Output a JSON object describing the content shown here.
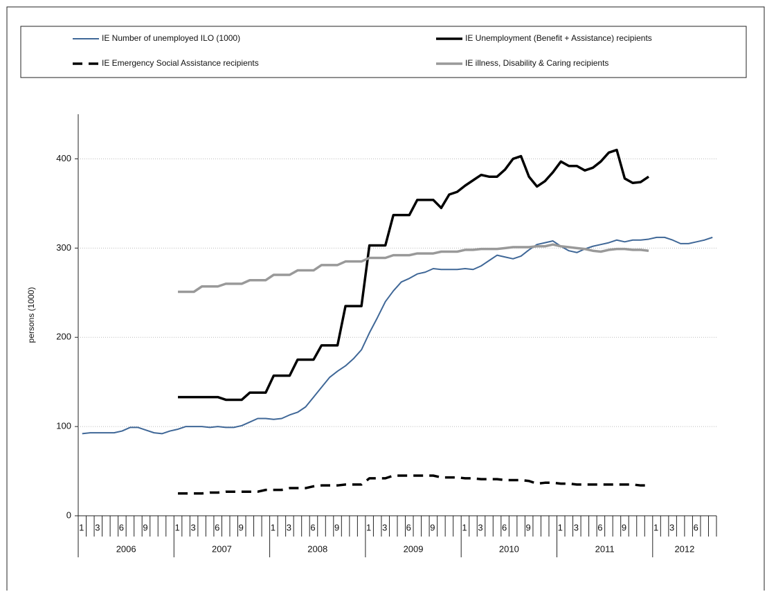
{
  "chart_data": {
    "type": "line",
    "y_label": "persons (1000)",
    "categories": [
      "1",
      null,
      "3",
      null,
      null,
      "6",
      null,
      null,
      "9",
      null,
      null,
      null,
      "1",
      null,
      "3",
      null,
      null,
      "6",
      null,
      null,
      "9",
      null,
      null,
      null,
      "1",
      null,
      "3",
      null,
      null,
      "6",
      null,
      null,
      "9",
      null,
      null,
      null,
      "1",
      null,
      "3",
      null,
      null,
      "6",
      null,
      null,
      "9",
      null,
      null,
      null,
      "1",
      null,
      "3",
      null,
      null,
      "6",
      null,
      null,
      "9",
      null,
      null,
      null,
      "1",
      null,
      "3",
      null,
      null,
      "6",
      null,
      null,
      "9",
      null,
      null,
      null,
      "1",
      null,
      "3",
      null,
      null,
      "6",
      null,
      null
    ],
    "x_groups": [
      "2006",
      "2007",
      "2008",
      "2009",
      "2010",
      "2011",
      "2012"
    ],
    "ylim": [
      0,
      450
    ],
    "yticks": [
      0,
      100,
      200,
      300,
      400
    ],
    "grid": true,
    "legend": "top",
    "series": [
      {
        "name": "IE Number of unemployed ILO (1000)",
        "color": "#3f6797",
        "line_width": 2,
        "line_style": "solid",
        "values": [
          92,
          93,
          93,
          93,
          93,
          95,
          99,
          99,
          96,
          93,
          92,
          95,
          97,
          100,
          100,
          100,
          99,
          100,
          99,
          99,
          101,
          105,
          109,
          109,
          108,
          109,
          113,
          116,
          122,
          133,
          144,
          155,
          162,
          168,
          176,
          186,
          205,
          222,
          240,
          252,
          262,
          266,
          271,
          273,
          277,
          276,
          276,
          276,
          277,
          276,
          280,
          286,
          292,
          290,
          288,
          291,
          298,
          304,
          306,
          308,
          302,
          297,
          295,
          299,
          302,
          304,
          306,
          309,
          307,
          309,
          309,
          310,
          312,
          312,
          309,
          305,
          305,
          307,
          309,
          312
        ]
      },
      {
        "name": "IE Unemployment (Benefit + Assistance) recipients",
        "color": "#000000",
        "line_width": 3.5,
        "line_style": "solid",
        "values": [
          null,
          null,
          null,
          null,
          null,
          null,
          null,
          null,
          null,
          null,
          null,
          null,
          133,
          133,
          133,
          133,
          133,
          133,
          130,
          130,
          130,
          138,
          138,
          138,
          157,
          157,
          157,
          175,
          175,
          175,
          191,
          191,
          191,
          235,
          235,
          235,
          303,
          303,
          303,
          337,
          337,
          337,
          354,
          354,
          354,
          345,
          360,
          363,
          370,
          376,
          382,
          380,
          380,
          388,
          400,
          403,
          380,
          369,
          375,
          385,
          397,
          392,
          392,
          387,
          390,
          397,
          407,
          410,
          378,
          373,
          374,
          380,
          null,
          null,
          null,
          null,
          null,
          null,
          null,
          null
        ]
      },
      {
        "name": "IE Emergency Social Assistance recipients",
        "color": "#000000",
        "line_width": 3.5,
        "line_style": "dashed",
        "values": [
          null,
          null,
          null,
          null,
          null,
          null,
          null,
          null,
          null,
          null,
          null,
          null,
          25,
          25,
          25,
          25,
          26,
          26,
          27,
          27,
          27,
          27,
          27,
          29,
          29,
          29,
          31,
          31,
          31,
          33,
          34,
          34,
          34,
          35,
          35,
          35,
          42,
          42,
          42,
          45,
          45,
          45,
          45,
          45,
          45,
          43,
          43,
          43,
          42,
          42,
          41,
          41,
          41,
          40,
          40,
          40,
          39,
          36,
          37,
          37,
          36,
          36,
          35,
          35,
          35,
          35,
          35,
          35,
          35,
          35,
          34,
          34,
          null,
          null,
          null,
          null,
          null,
          null,
          null,
          null
        ]
      },
      {
        "name": "IE illness, Disability & Caring recipients",
        "color": "#999999",
        "line_width": 3.5,
        "line_style": "solid",
        "values": [
          null,
          null,
          null,
          null,
          null,
          null,
          null,
          null,
          null,
          null,
          null,
          null,
          251,
          251,
          251,
          257,
          257,
          257,
          260,
          260,
          260,
          264,
          264,
          264,
          270,
          270,
          270,
          275,
          275,
          275,
          281,
          281,
          281,
          285,
          285,
          285,
          289,
          289,
          289,
          292,
          292,
          292,
          294,
          294,
          294,
          296,
          296,
          296,
          298,
          298,
          299,
          299,
          299,
          300,
          301,
          301,
          301,
          302,
          302,
          304,
          302,
          301,
          300,
          299,
          297,
          296,
          298,
          299,
          299,
          298,
          298,
          297,
          null,
          null,
          null,
          null,
          null,
          null,
          null,
          null
        ]
      }
    ]
  }
}
